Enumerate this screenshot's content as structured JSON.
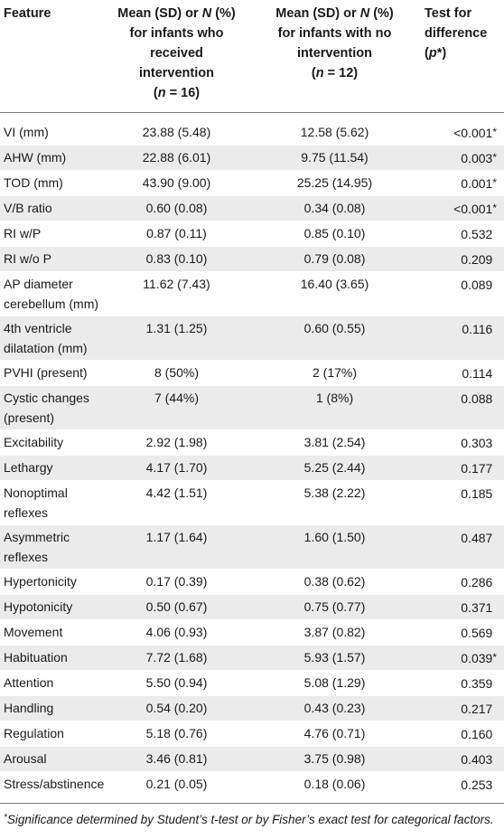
{
  "table": {
    "headers": {
      "feature": "Feature",
      "intervention": {
        "line1": "Mean (SD) or ",
        "line1_italic": "N",
        "line1_tail": " (%)",
        "line2": "for infants who",
        "line3": "received",
        "line4": "intervention",
        "n_open": "(",
        "n_italic": "n",
        "n_tail": " = 16)"
      },
      "no_intervention": {
        "line1": "Mean (SD) or ",
        "line1_italic": "N",
        "line1_tail": " (%)",
        "line2": "for infants with no",
        "line3": "intervention",
        "n_open": "(",
        "n_italic": "n",
        "n_tail": " = 12)"
      },
      "test": {
        "line1": "Test for",
        "line2": "difference",
        "line3_open": "(",
        "line3_italic": "p",
        "line3_tail": "*)"
      }
    },
    "rows": [
      {
        "feature": "VI (mm)",
        "int": "23.88 (5.48)",
        "noint": "12.58 (5.62)",
        "p": "<0.001",
        "star": "*"
      },
      {
        "feature": "AHW (mm)",
        "int": "22.88 (6.01)",
        "noint": "9.75 (11.54)",
        "p": "0.003",
        "star": "*"
      },
      {
        "feature": "TOD (mm)",
        "int": "43.90 (9.00)",
        "noint": "25.25 (14.95)",
        "p": "0.001",
        "star": "*"
      },
      {
        "feature": "V/B ratio",
        "int": "0.60 (0.08)",
        "noint": "0.34 (0.08)",
        "p": "<0.001",
        "star": "*"
      },
      {
        "feature": "RI w/P",
        "int": "0.87 (0.11)",
        "noint": "0.85 (0.10)",
        "p": "0.532",
        "star": ""
      },
      {
        "feature": "RI w/o P",
        "int": "0.83 (0.10)",
        "noint": "0.79 (0.08)",
        "p": "0.209",
        "star": ""
      },
      {
        "feature": "AP diameter cerebellum (mm)",
        "int": "11.62 (7.43)",
        "noint": "16.40 (3.65)",
        "p": "0.089",
        "star": ""
      },
      {
        "feature": "4th ventricle dilatation (mm)",
        "int": "1.31 (1.25)",
        "noint": "0.60 (0.55)",
        "p": "0.116",
        "star": ""
      },
      {
        "feature": "PVHI (present)",
        "int": "8 (50%)",
        "noint": "2 (17%)",
        "p": "0.114",
        "star": ""
      },
      {
        "feature": "Cystic changes (present)",
        "int": "7 (44%)",
        "noint": "1 (8%)",
        "p": "0.088",
        "star": ""
      },
      {
        "feature": "Excitability",
        "int": "2.92 (1.98)",
        "noint": "3.81 (2.54)",
        "p": "0.303",
        "star": ""
      },
      {
        "feature": "Lethargy",
        "int": "4.17 (1.70)",
        "noint": "5.25 (2.44)",
        "p": "0.177",
        "star": ""
      },
      {
        "feature": "Nonoptimal reflexes",
        "int": "4.42 (1.51)",
        "noint": "5.38 (2.22)",
        "p": "0.185",
        "star": ""
      },
      {
        "feature": "Asymmetric reflexes",
        "int": "1.17 (1.64)",
        "noint": "1.60 (1.50)",
        "p": "0.487",
        "star": ""
      },
      {
        "feature": "Hypertonicity",
        "int": "0.17 (0.39)",
        "noint": "0.38 (0.62)",
        "p": "0.286",
        "star": ""
      },
      {
        "feature": "Hypotonicity",
        "int": "0.50 (0.67)",
        "noint": "0.75 (0.77)",
        "p": "0.371",
        "star": ""
      },
      {
        "feature": "Movement",
        "int": "4.06 (0.93)",
        "noint": "3.87 (0.82)",
        "p": "0.569",
        "star": ""
      },
      {
        "feature": "Habituation",
        "int": "7.72 (1.68)",
        "noint": "5.93 (1.57)",
        "p": "0.039",
        "star": "*"
      },
      {
        "feature": "Attention",
        "int": "5.50 (0.94)",
        "noint": "5.08 (1.29)",
        "p": "0.359",
        "star": ""
      },
      {
        "feature": "Handling",
        "int": "0.54 (0.20)",
        "noint": "0.43 (0.23)",
        "p": "0.217",
        "star": ""
      },
      {
        "feature": "Regulation",
        "int": "5.18 (0.76)",
        "noint": "4.76 (0.71)",
        "p": "0.160",
        "star": ""
      },
      {
        "feature": "Arousal",
        "int": "3.46 (0.81)",
        "noint": "3.75 (0.98)",
        "p": "0.403",
        "star": ""
      },
      {
        "feature": "Stress/abstinence",
        "int": "0.21 (0.05)",
        "noint": "0.18 (0.06)",
        "p": "0.253",
        "star": ""
      }
    ]
  },
  "footnote": {
    "marker": "*",
    "text": "Significance determined by Student’s t-test or by Fisher’s exact test for categorical factors."
  },
  "colors": {
    "row_alt": "#ebebeb",
    "rule": "#7d7d7d",
    "text": "#1a1a1a"
  }
}
